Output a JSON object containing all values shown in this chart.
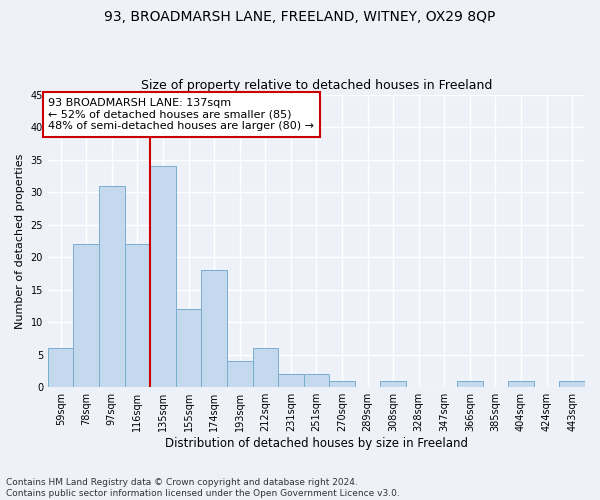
{
  "title1": "93, BROADMARSH LANE, FREELAND, WITNEY, OX29 8QP",
  "title2": "Size of property relative to detached houses in Freeland",
  "xlabel": "Distribution of detached houses by size in Freeland",
  "ylabel": "Number of detached properties",
  "categories": [
    "59sqm",
    "78sqm",
    "97sqm",
    "116sqm",
    "135sqm",
    "155sqm",
    "174sqm",
    "193sqm",
    "212sqm",
    "231sqm",
    "251sqm",
    "270sqm",
    "289sqm",
    "308sqm",
    "328sqm",
    "347sqm",
    "366sqm",
    "385sqm",
    "404sqm",
    "424sqm",
    "443sqm"
  ],
  "values": [
    6,
    22,
    31,
    22,
    34,
    12,
    18,
    4,
    6,
    2,
    2,
    1,
    0,
    1,
    0,
    0,
    1,
    0,
    1,
    0,
    1
  ],
  "bar_color": "#c5d9ee",
  "bar_edge_color": "#7aadcf",
  "vline_x": 4.0,
  "vline_color": "#cc0000",
  "annotation_line1": "93 BROADMARSH LANE: 137sqm",
  "annotation_line2": "← 52% of detached houses are smaller (85)",
  "annotation_line3": "48% of semi-detached houses are larger (80) →",
  "annotation_box_color": "#ffffff",
  "annotation_box_edge": "#cc0000",
  "ylim": [
    0,
    45
  ],
  "yticks": [
    0,
    5,
    10,
    15,
    20,
    25,
    30,
    35,
    40,
    45
  ],
  "footnote": "Contains HM Land Registry data © Crown copyright and database right 2024.\nContains public sector information licensed under the Open Government Licence v3.0.",
  "background_color": "#eef2f8",
  "grid_color": "#ffffff",
  "title1_fontsize": 10,
  "title2_fontsize": 9,
  "xlabel_fontsize": 8.5,
  "ylabel_fontsize": 8,
  "tick_fontsize": 7,
  "annotation_fontsize": 8,
  "footnote_fontsize": 6.5
}
